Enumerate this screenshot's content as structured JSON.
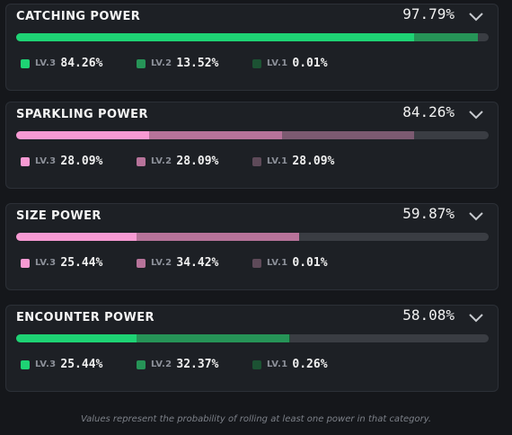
{
  "cards": [
    {
      "title": "CATCHING POWER",
      "total": "97.79%",
      "segments": [
        {
          "fraction": 0.8426,
          "color": "#1ed374"
        },
        {
          "fraction": 0.1352,
          "color": "#269457"
        },
        {
          "fraction": 0.0001,
          "color": "#1c5233"
        }
      ],
      "legend": [
        {
          "level": "LV.3",
          "value": "84.26%",
          "color": "#1ed374"
        },
        {
          "level": "LV.2",
          "value": "13.52%",
          "color": "#269457"
        },
        {
          "level": "LV.1",
          "value": "0.01%",
          "color": "#1c5233"
        }
      ]
    },
    {
      "title": "SPARKLING POWER",
      "total": "84.26%",
      "segments": [
        {
          "fraction": 0.2809,
          "color": "#f79ad3"
        },
        {
          "fraction": 0.2809,
          "color": "#b7739a"
        },
        {
          "fraction": 0.2809,
          "color": "#7c5a71"
        }
      ],
      "legend": [
        {
          "level": "LV.3",
          "value": "28.09%",
          "color": "#f79ad3"
        },
        {
          "level": "LV.2",
          "value": "28.09%",
          "color": "#b7739a"
        },
        {
          "level": "LV.1",
          "value": "28.09%",
          "color": "#5e4a59"
        }
      ]
    },
    {
      "title": "SIZE POWER",
      "total": "59.87%",
      "segments": [
        {
          "fraction": 0.2544,
          "color": "#f79ad3"
        },
        {
          "fraction": 0.3442,
          "color": "#b7739a"
        },
        {
          "fraction": 0.0001,
          "color": "#7c5a71"
        }
      ],
      "legend": [
        {
          "level": "LV.3",
          "value": "25.44%",
          "color": "#f79ad3"
        },
        {
          "level": "LV.2",
          "value": "34.42%",
          "color": "#b7739a"
        },
        {
          "level": "LV.1",
          "value": "0.01%",
          "color": "#5e4a59"
        }
      ]
    },
    {
      "title": "ENCOUNTER POWER",
      "total": "58.08%",
      "segments": [
        {
          "fraction": 0.2544,
          "color": "#1ed374"
        },
        {
          "fraction": 0.3237,
          "color": "#269457"
        },
        {
          "fraction": 0.0026,
          "color": "#1c5233"
        }
      ],
      "legend": [
        {
          "level": "LV.3",
          "value": "25.44%",
          "color": "#1ed374"
        },
        {
          "level": "LV.2",
          "value": "32.37%",
          "color": "#269457"
        },
        {
          "level": "LV.1",
          "value": "0.26%",
          "color": "#1c5233"
        }
      ]
    }
  ],
  "footnote": "Values represent the probability of rolling at least one power in that category.",
  "icons": {
    "toggle": "chevron-down-icon"
  }
}
